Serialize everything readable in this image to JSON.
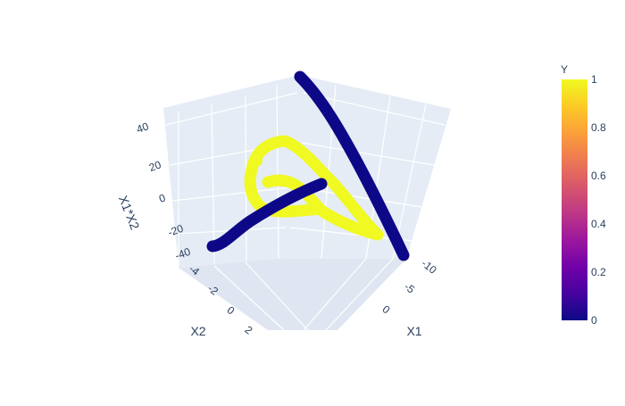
{
  "chart_data": {
    "type": "scatter3d",
    "title": "",
    "axes": {
      "x": {
        "title": "X1",
        "ticks": [
          "-10",
          "-5",
          "0"
        ]
      },
      "y": {
        "title": "X2",
        "ticks": [
          "-4",
          "-2",
          "0",
          "2"
        ]
      },
      "z": {
        "title": "X1*X2",
        "ticks": [
          "40",
          "20",
          "0",
          "-20",
          "-40"
        ]
      }
    },
    "colorbar": {
      "title": "Y",
      "range": [
        0,
        1
      ],
      "ticks": [
        "1",
        "0.8",
        "0.6",
        "0.4",
        "0.2",
        "0"
      ],
      "colors": [
        "#0d0887",
        "#46039f",
        "#7201a8",
        "#9c179e",
        "#bd3786",
        "#d8576b",
        "#ed7953",
        "#fb9f3a",
        "#fdca26",
        "#f0f921"
      ]
    },
    "series": [
      {
        "class": 0,
        "color": "#0d0887",
        "description_path": "long diagonal strand"
      },
      {
        "class": 0,
        "color": "#0d0887",
        "description_path": "curved lower-left strand"
      },
      {
        "class": 1,
        "color": "#f0f921",
        "description_path": "triangular loop"
      }
    ],
    "scene": {
      "background": "#e5ecf6",
      "grid": true
    }
  }
}
